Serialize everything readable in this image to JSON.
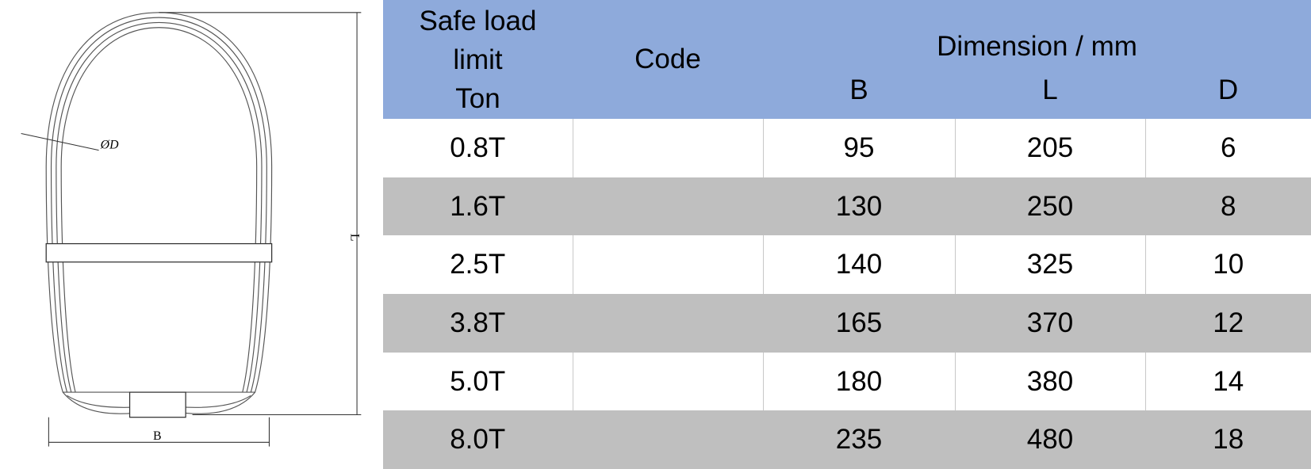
{
  "header": {
    "safe_load": [
      "Safe load",
      "limit",
      "Ton"
    ],
    "code": "Code",
    "dimension": "Dimension / mm",
    "cols": [
      "B",
      "L",
      "D"
    ]
  },
  "rows": [
    {
      "load": "0.8T",
      "code": "",
      "B": "95",
      "L": "205",
      "D": "6"
    },
    {
      "load": "1.6T",
      "code": "",
      "B": "130",
      "L": "250",
      "D": "8"
    },
    {
      "load": "2.5T",
      "code": "",
      "B": "140",
      "L": "325",
      "D": "10"
    },
    {
      "load": "3.8T",
      "code": "",
      "B": "165",
      "L": "370",
      "D": "12"
    },
    {
      "load": "5.0T",
      "code": "",
      "B": "180",
      "L": "380",
      "D": "14"
    },
    {
      "load": "8.0T",
      "code": "",
      "B": "235",
      "L": "480",
      "D": "18"
    }
  ],
  "drawing": {
    "label_d": "ØD",
    "label_l": "L",
    "label_b": "B"
  },
  "colors": {
    "header": "#8eaadb",
    "alt_row": "#bfbfbf"
  }
}
